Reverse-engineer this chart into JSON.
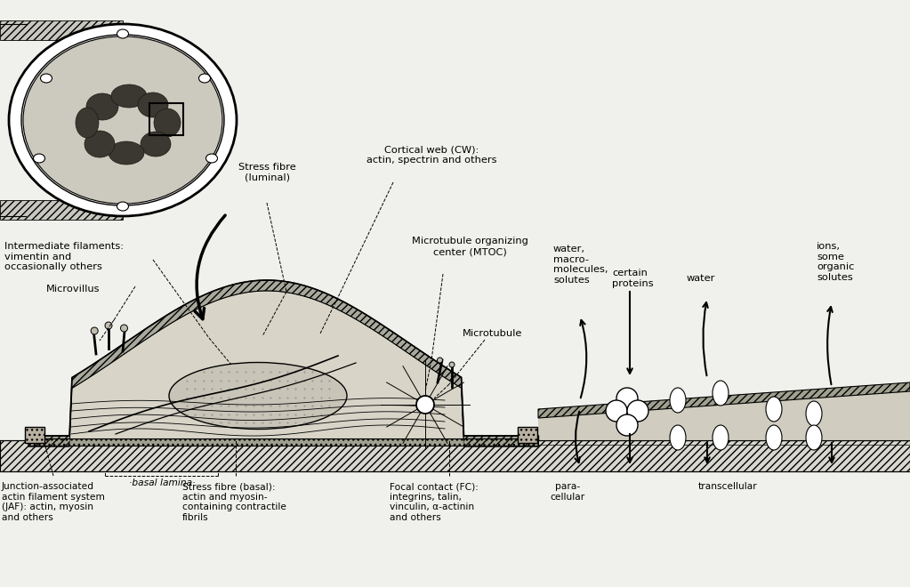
{
  "bg_color": "#f0f0ec",
  "line_color": "#000000",
  "fig_width": 10.23,
  "fig_height": 6.6,
  "labels": {
    "stress_fibre_luminal": "Stress fibre\n(luminal)",
    "cortical_web": "Cortical web (CW):\nactin, spectrin and others",
    "mtoc": "Microtubule organizing\ncenter (MTOC)",
    "intermediate_filaments": "Intermediate filaments:\nvimentin and\noccasionally others",
    "microvillus": "Microvillus",
    "microtubule": "Microtubule",
    "water_macromolecules": "water,\nmacro-\nmolecules,\nsolutes",
    "certain_proteins": "certain\nproteins",
    "water": "water",
    "ions": "ions,\nsome\norganic\nsolutes",
    "basal_lamina": "·basal lamina·",
    "jaf": "Junction-associated\nactin filament system\n(JAF): actin, myosin\nand others",
    "stress_fibre_basal": "Stress fibre (basal):\nactin and myosin-\ncontaining contractile\nfibrils",
    "focal_contact": "Focal contact (FC):\nintegrins, talin,\nvinculin, α-actinin\nand others",
    "paracellular": "para-\ncellular",
    "transcellular": "transcellular"
  }
}
